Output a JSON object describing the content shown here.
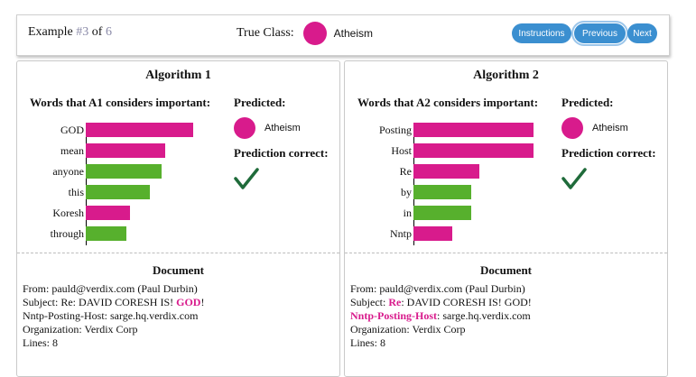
{
  "header": {
    "example_prefix": "Example ",
    "example_num": "#3",
    "example_of": " of ",
    "example_total": "6",
    "true_class_label": "True Class:",
    "true_class": "Atheism",
    "buttons": {
      "instructions": "Instructions",
      "previous": "Previous",
      "next": "Next"
    }
  },
  "colors": {
    "atheism": "#d81b8c",
    "other": "#57b02d",
    "button": "#3b8fd0",
    "check": "#1f6b3a"
  },
  "panels": [
    {
      "title": "Algorithm 1",
      "words_label": "Words that A1 considers important:",
      "predicted_label": "Predicted:",
      "predicted_class": "Atheism",
      "correct_label": "Prediction correct:",
      "check_icon": "checkmark-icon",
      "features": [
        {
          "word": "GOD",
          "weight": 0.85,
          "class": "atheism"
        },
        {
          "word": "mean",
          "weight": 0.63,
          "class": "atheism"
        },
        {
          "word": "anyone",
          "weight": 0.6,
          "class": "other"
        },
        {
          "word": "this",
          "weight": 0.51,
          "class": "other"
        },
        {
          "word": "Koresh",
          "weight": 0.35,
          "class": "atheism"
        },
        {
          "word": "through",
          "weight": 0.32,
          "class": "other"
        }
      ],
      "doc_title": "Document",
      "doc_lines": [
        [
          {
            "t": "From: pauld@verdix.com (Paul Durbin)"
          }
        ],
        [
          {
            "t": "Subject: Re: DAVID CORESH IS! "
          },
          {
            "t": "GOD",
            "hl": true
          },
          {
            "t": "!"
          }
        ],
        [
          {
            "t": "Nntp-Posting-Host: sarge.hq.verdix.com"
          }
        ],
        [
          {
            "t": "Organization: Verdix Corp"
          }
        ],
        [
          {
            "t": "Lines: 8"
          }
        ]
      ]
    },
    {
      "title": "Algorithm 2",
      "words_label": "Words that A2 considers important:",
      "predicted_label": "Predicted:",
      "predicted_class": "Atheism",
      "correct_label": "Prediction correct:",
      "check_icon": "checkmark-icon",
      "features": [
        {
          "word": "Posting",
          "weight": 0.95,
          "class": "atheism"
        },
        {
          "word": "Host",
          "weight": 0.95,
          "class": "atheism"
        },
        {
          "word": "Re",
          "weight": 0.52,
          "class": "atheism"
        },
        {
          "word": "by",
          "weight": 0.46,
          "class": "other"
        },
        {
          "word": "in",
          "weight": 0.46,
          "class": "other"
        },
        {
          "word": "Nntp",
          "weight": 0.31,
          "class": "atheism"
        }
      ],
      "doc_title": "Document",
      "doc_lines": [
        [
          {
            "t": "From: pauld@verdix.com (Paul Durbin)"
          }
        ],
        [
          {
            "t": "Subject: "
          },
          {
            "t": "Re",
            "hl": true
          },
          {
            "t": ": DAVID CORESH IS! GOD!"
          }
        ],
        [
          {
            "t": "Nntp-Posting-Host",
            "hl": true
          },
          {
            "t": ": sarge.hq.verdix.com"
          }
        ],
        [
          {
            "t": "Organization: Verdix Corp"
          }
        ],
        [
          {
            "t": "Lines: 8"
          }
        ]
      ]
    }
  ]
}
